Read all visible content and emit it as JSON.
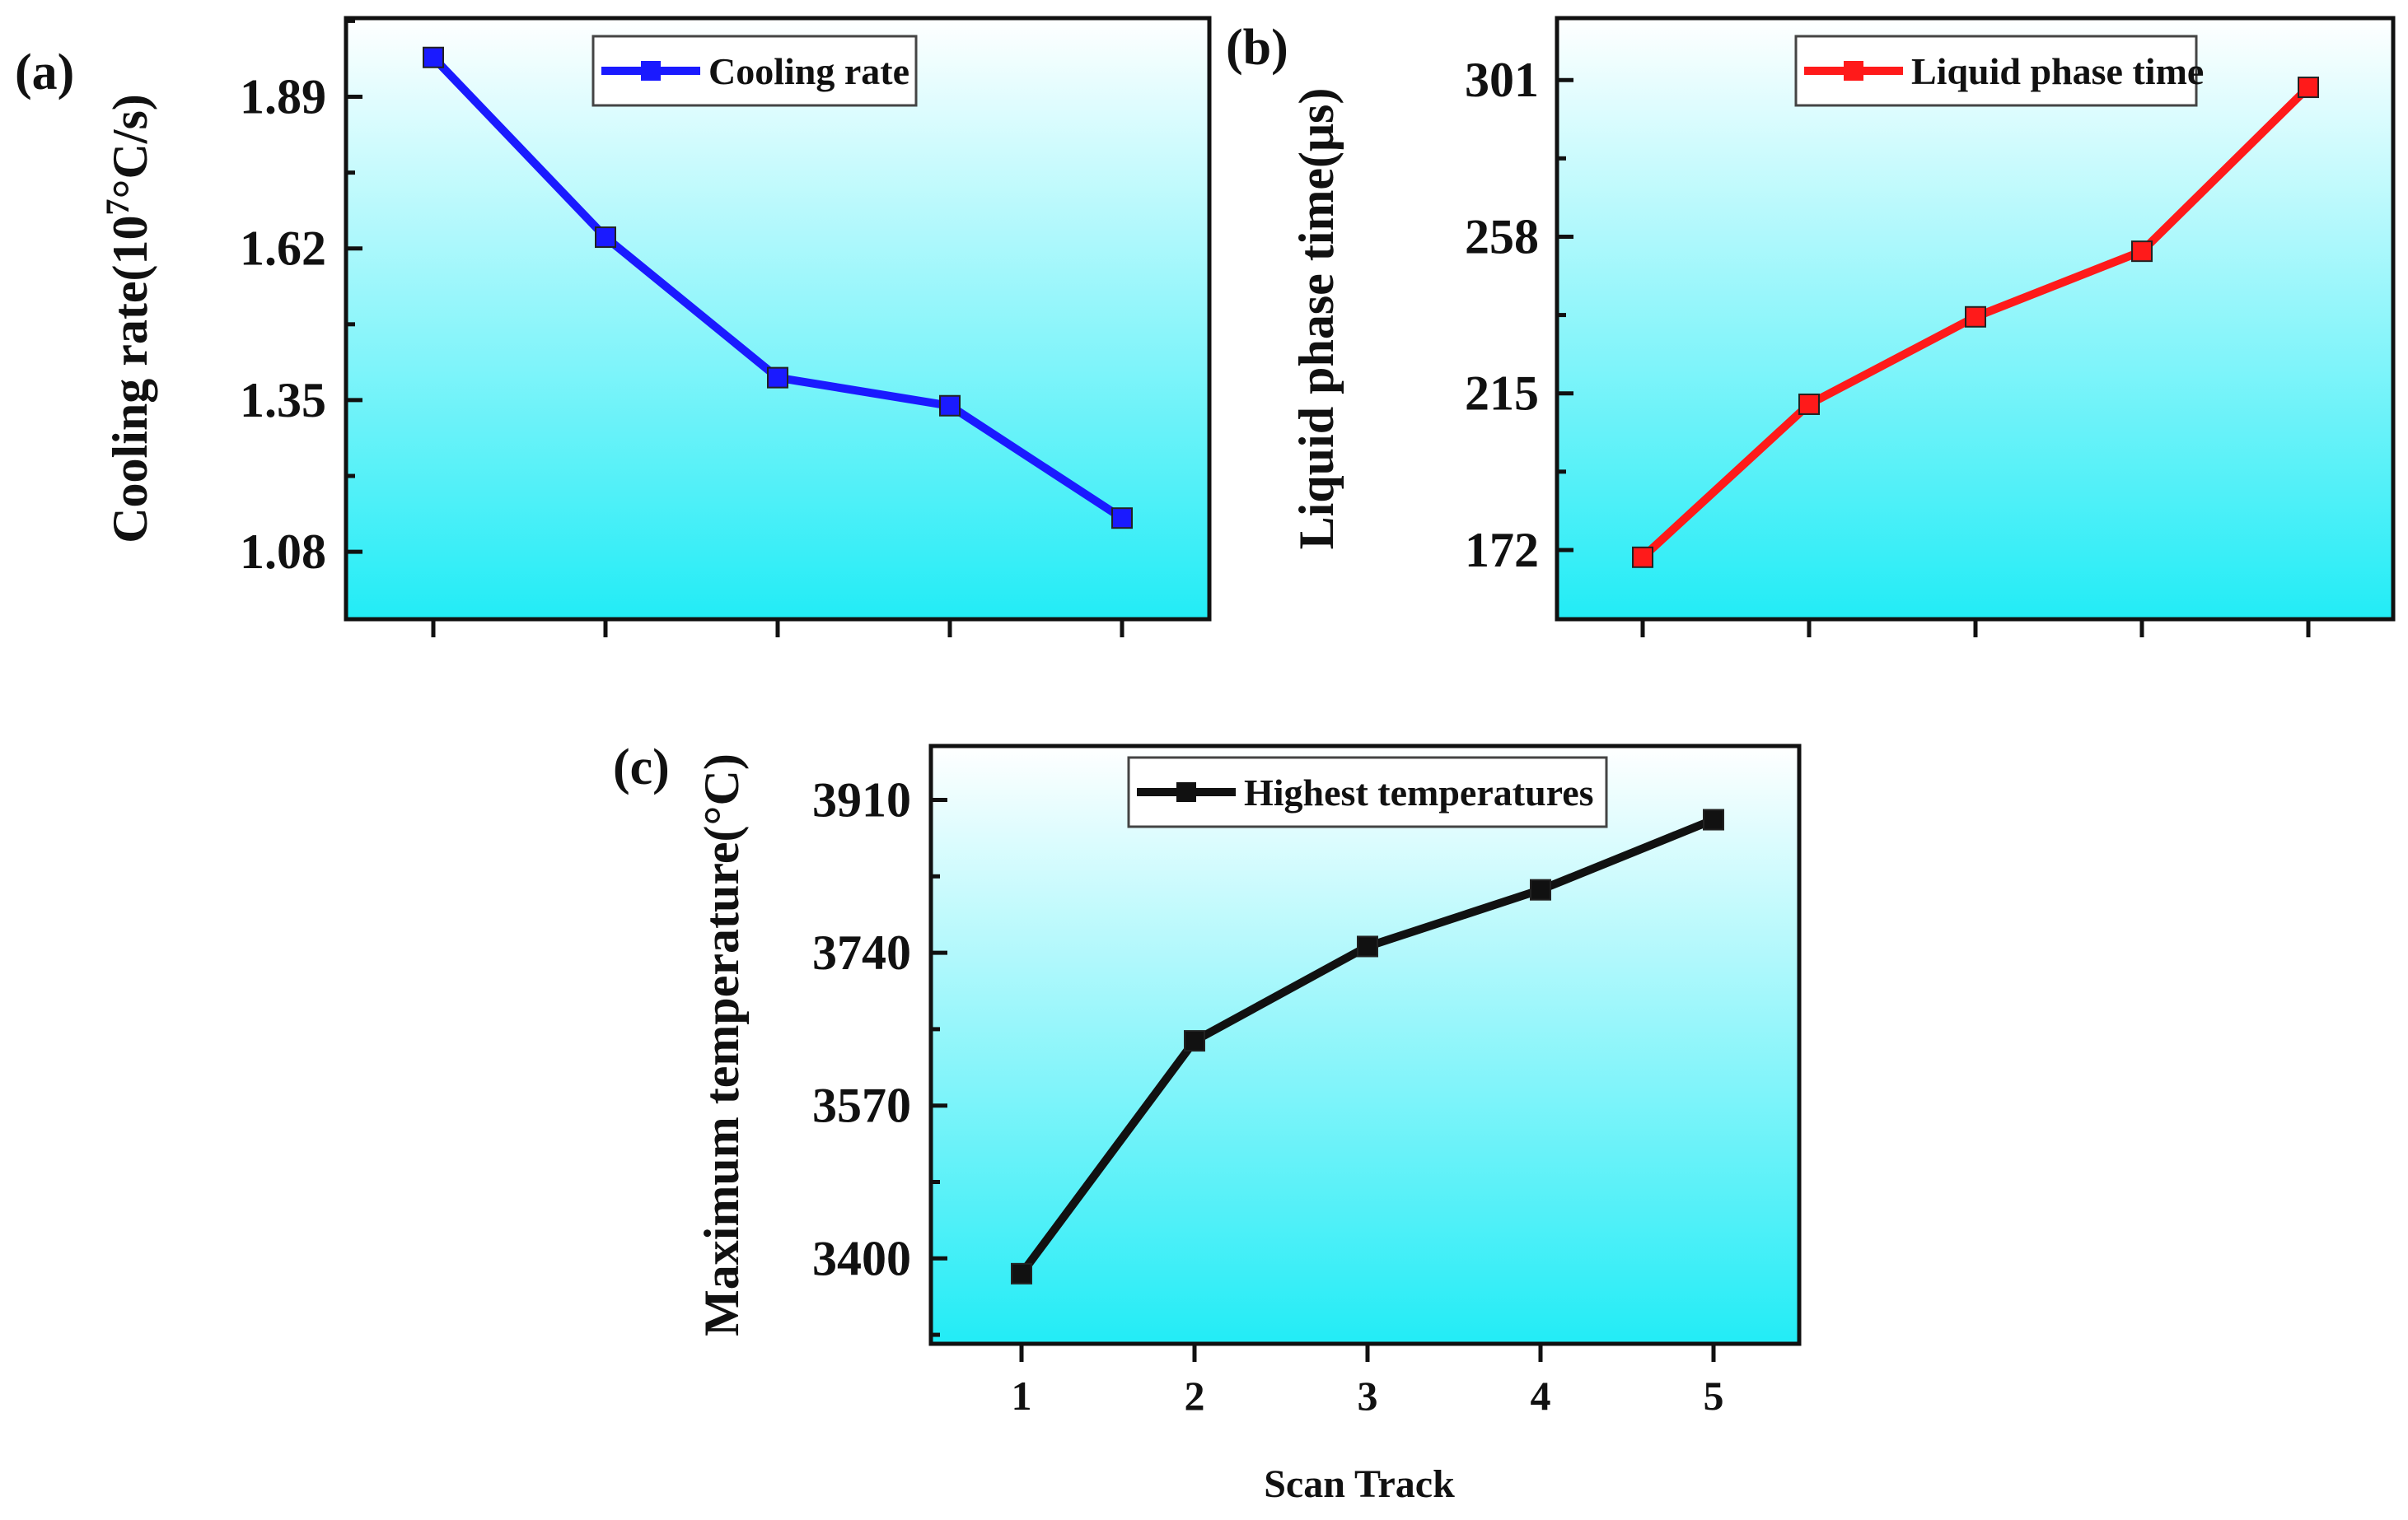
{
  "x_axis_label": "Scan Track",
  "chart_data": [
    {
      "panel": "(a)",
      "type": "line",
      "title": "",
      "x": [
        1,
        2,
        3,
        4,
        5
      ],
      "xtick_labels_visible": false,
      "series": [
        {
          "name": "Cooling rate",
          "color": "#1a1aff",
          "values": [
            1.96,
            1.64,
            1.39,
            1.34,
            1.14
          ]
        }
      ],
      "ylabel": "Cooling rate(10",
      "ylabel_sup": "7",
      "ylabel_suffix": "°C/s)",
      "yticks": [
        "1.08",
        "1.35",
        "1.62",
        "1.89"
      ],
      "ylim": [
        0.96,
        2.03
      ],
      "legend_position": "top-center"
    },
    {
      "panel": "(b)",
      "type": "line",
      "title": "",
      "x": [
        1,
        2,
        3,
        4,
        5
      ],
      "xtick_labels_visible": false,
      "series": [
        {
          "name": "Liquid phase time",
          "color": "#ff1a1a",
          "values": [
            170,
            212,
            236,
            254,
            299
          ]
        }
      ],
      "ylabel": "Liquid phase time(μs)",
      "yticks": [
        "172",
        "215",
        "258",
        "301"
      ],
      "ylim": [
        153,
        318
      ],
      "legend_position": "top-right"
    },
    {
      "panel": "(c)",
      "type": "line",
      "title": "",
      "x": [
        1,
        2,
        3,
        4,
        5
      ],
      "xticks": [
        "1",
        "2",
        "3",
        "4",
        "5"
      ],
      "xtick_labels_visible": true,
      "series": [
        {
          "name": "Highest temperatures",
          "color": "#111111",
          "values": [
            3383,
            3642,
            3747,
            3810,
            3888
          ]
        }
      ],
      "ylabel": "Maximum temperature(°C)",
      "yticks": [
        "3400",
        "3570",
        "3740",
        "3910"
      ],
      "ylim": [
        3305,
        3970
      ],
      "legend_position": "top-center",
      "xlabel": "Scan Track"
    }
  ]
}
